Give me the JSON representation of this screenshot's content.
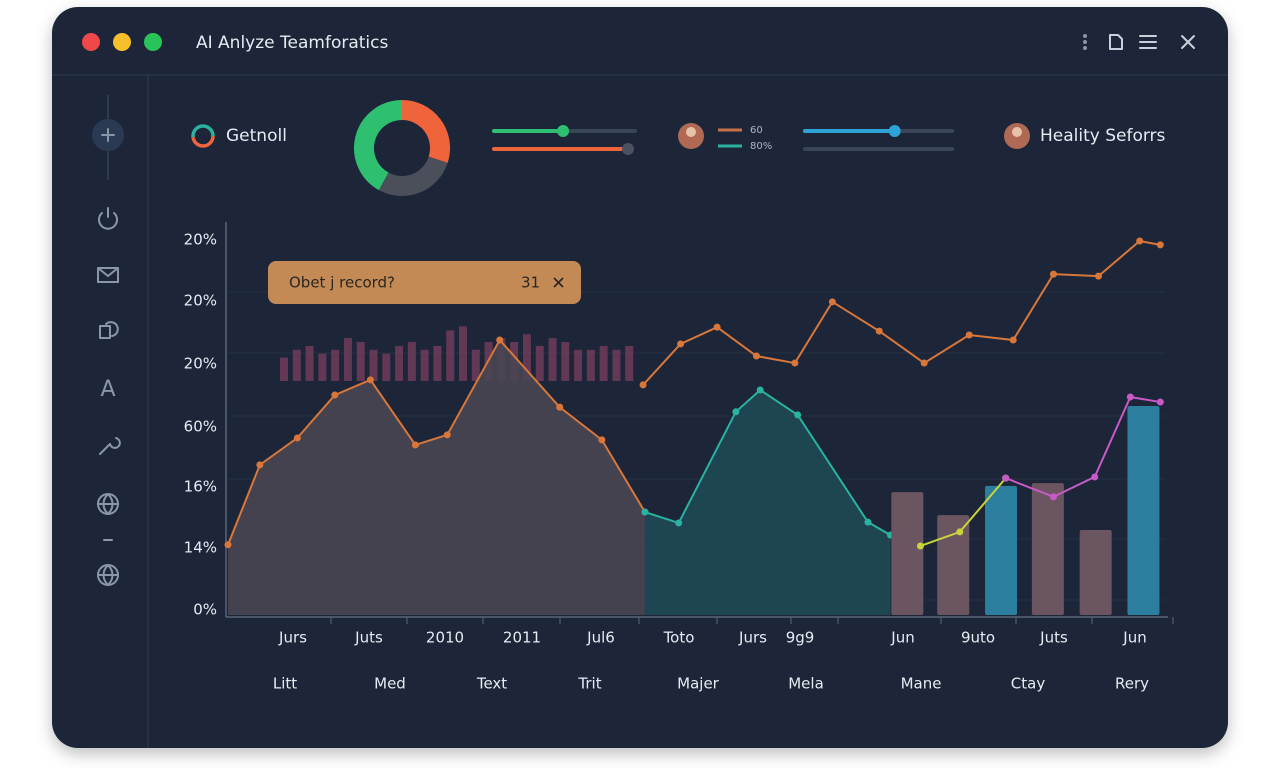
{
  "window": {
    "title": "AI Anlyze Teamforatics"
  },
  "sidebar": {
    "letter": "A"
  },
  "header": {
    "left_label": "Getnoll",
    "right_label": "Heality Seforrs",
    "donut": {
      "values": [
        30,
        28,
        42
      ],
      "colors": [
        "#f0643c",
        "#4a4f5a",
        "#2fbf71"
      ]
    },
    "sliders": [
      {
        "value": 49,
        "color": "#2fbf71"
      },
      {
        "value": 95,
        "color": "#f0643c"
      },
      {
        "value": 61,
        "color": "#2ea3d6"
      }
    ],
    "legend": [
      {
        "label": "60",
        "color": "#c8704a"
      },
      {
        "label": "80%",
        "color": "#2ab3a0"
      }
    ]
  },
  "chart": {
    "xlim": [
      0,
      100
    ],
    "ylim": [
      0,
      100
    ],
    "y_labels": [
      "20%",
      "20%",
      "20%",
      "60%",
      "16%",
      "14%",
      "0%"
    ],
    "x_labels": [
      "Jurs",
      "Juts",
      "2010",
      "2011",
      "Jul6",
      "Toto",
      "Jurs",
      "9g9",
      "Jun",
      "9uto",
      "Juts",
      "Jun"
    ],
    "x_labels_2": [
      "Litt",
      "Med",
      "Text",
      "Trit",
      "Majer",
      "Mela",
      "Mane",
      "Ctay",
      "Rery"
    ],
    "tooltip": {
      "text": "Obet j record?",
      "value": 31
    },
    "histogram": {
      "base": 60,
      "color": "#7a3f5e",
      "values": [
        6,
        8,
        9,
        7,
        8,
        11,
        10,
        8,
        7,
        9,
        10,
        8,
        9,
        13,
        14,
        8,
        10,
        11,
        10,
        12,
        9,
        11,
        10,
        8,
        8,
        9,
        8,
        9
      ]
    },
    "areas": [
      {
        "color": "#d9773a",
        "fill": "#4a4652",
        "x": [
          0,
          3.4,
          7.4,
          11.4,
          15.2,
          20,
          23.4,
          29,
          35.4,
          39.9,
          44.5
        ],
        "values": [
          18,
          38.5,
          45.4,
          56.4,
          60.3,
          43.6,
          46.2,
          70.5,
          53.3,
          44.9,
          26.4
        ]
      },
      {
        "color": "#2ab3a0",
        "fill": "#1e4a55",
        "x": [
          44.5,
          48.1,
          54.2,
          56.8,
          60.8,
          68.3,
          70.7
        ],
        "values": [
          26.4,
          23.6,
          52.1,
          57.7,
          51.3,
          23.8,
          20.5
        ]
      }
    ],
    "bars": {
      "x": [
        72.5,
        77.4,
        82.5,
        87.5,
        92.6,
        97.7
      ],
      "values": [
        31.5,
        25.6,
        33.1,
        33.8,
        21.8,
        53.6
      ],
      "colors": [
        "#6b5560",
        "#6b5560",
        "#2b7e9e",
        "#6b5560",
        "#6b5560",
        "#2b7e9e"
      ]
    },
    "lines": [
      {
        "color": "#d9773a",
        "x": [
          44.3,
          48.3,
          52.2,
          56.4,
          60.5,
          64.5,
          69.5,
          74.3,
          79.1,
          83.8,
          88.1,
          92.9,
          97.3,
          99.5
        ],
        "values": [
          59,
          69.5,
          73.8,
          66.4,
          64.6,
          80.3,
          72.8,
          64.6,
          71.8,
          70.5,
          87.4,
          86.9,
          95.9,
          94.9
        ]
      },
      {
        "color": "#c8d43a",
        "x": [
          73.9,
          78.1,
          83
        ],
        "values": [
          17.7,
          21.3,
          35.1
        ]
      },
      {
        "color": "#c85ac8",
        "x": [
          83,
          88.1,
          92.5,
          96.3,
          99.5
        ],
        "values": [
          35.1,
          30.3,
          35.4,
          55.9,
          54.6
        ]
      }
    ]
  }
}
